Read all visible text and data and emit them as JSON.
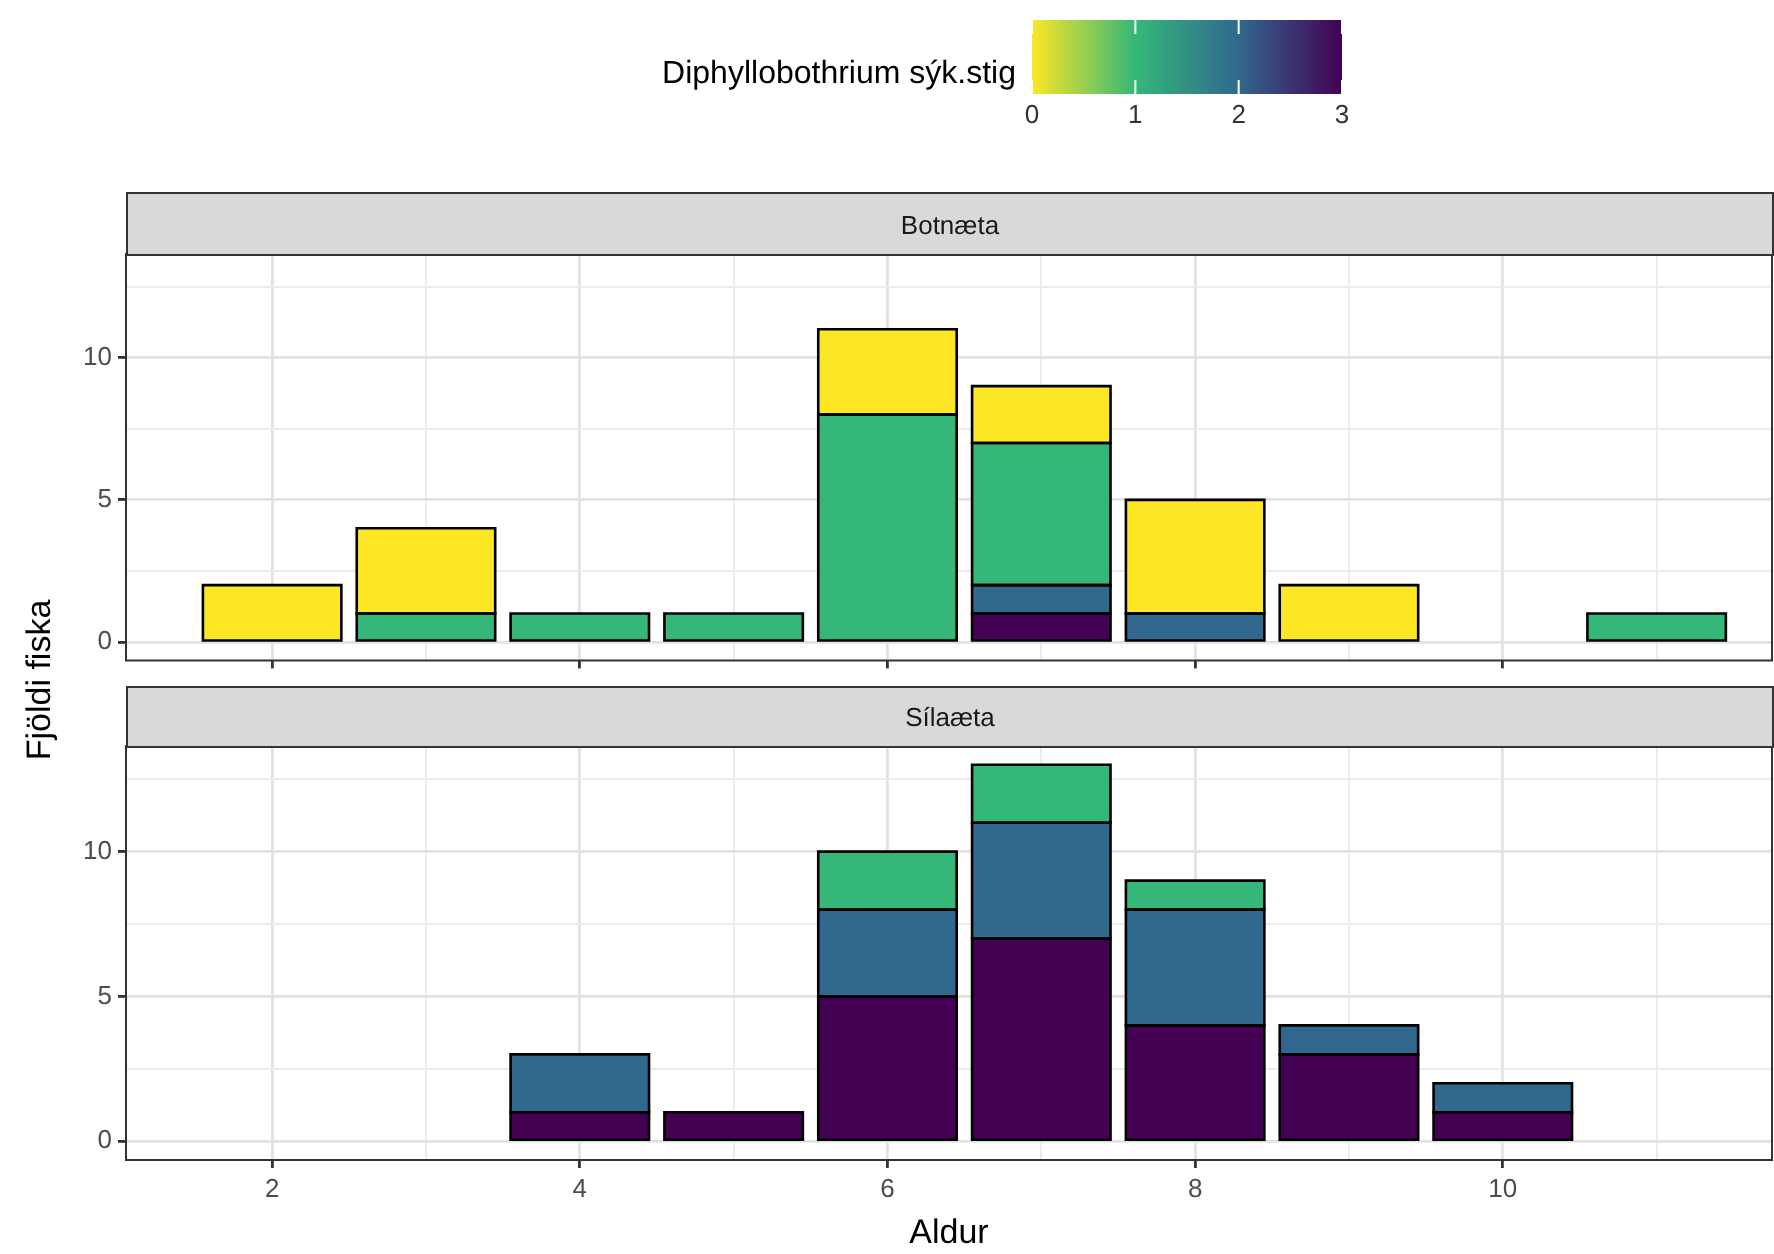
{
  "chart_data": [
    {
      "type": "bar",
      "title": "Botnæta",
      "ylabel": "Fjöldi fiska",
      "clabel": "Diphyllobothrium sýk.stig",
      "clim": [
        0,
        3
      ],
      "cticks": [
        0,
        1,
        2,
        3
      ],
      "stacked": true,
      "grid": true,
      "legend": false,
      "tick_labels": "y",
      "x": [
        2,
        3,
        4,
        5,
        6,
        7,
        8,
        9,
        10,
        11
      ],
      "series": [
        {
          "color": "#440154",
          "values": [
            null,
            null,
            null,
            null,
            null,
            1,
            null,
            null,
            null,
            null
          ]
        },
        {
          "color": "#31688e",
          "values": [
            null,
            null,
            null,
            null,
            null,
            1,
            1,
            null,
            null,
            null
          ]
        },
        {
          "color": "#35b779",
          "values": [
            null,
            1,
            1,
            1,
            8,
            5,
            null,
            null,
            null,
            1
          ]
        },
        {
          "color": "#fde725",
          "values": [
            2,
            3,
            null,
            null,
            3,
            2,
            4,
            2,
            null,
            null
          ]
        }
      ],
      "xlim": [
        1.05,
        11.75
      ],
      "xticks": [
        2,
        {
          "value": 3,
          "label": null
        },
        4,
        {
          "value": 5,
          "label": null
        },
        6,
        {
          "value": 7,
          "label": null
        },
        8,
        {
          "value": 9,
          "label": null
        },
        10,
        {
          "value": 11,
          "label": null
        }
      ],
      "ylim": [
        -0.65,
        13.65
      ],
      "yticks": [
        0,
        {
          "value": 2.5,
          "label": null
        },
        5,
        {
          "value": 7.5,
          "label": null
        },
        10,
        {
          "value": 12.5,
          "label": null
        }
      ]
    },
    {
      "type": "bar",
      "title": "Sílaæta",
      "xlabel": "Aldur",
      "stacked": true,
      "grid": true,
      "legend": false,
      "x": [
        4,
        5,
        6,
        7,
        8,
        9,
        10
      ],
      "series": [
        {
          "color": "#440154",
          "values": [
            1,
            1,
            5,
            7,
            4,
            3,
            1
          ]
        },
        {
          "color": "#31688e",
          "values": [
            2,
            null,
            3,
            4,
            4,
            1,
            1
          ]
        },
        {
          "color": "#35b779",
          "values": [
            null,
            null,
            2,
            2,
            1,
            null,
            null
          ]
        }
      ],
      "xlim": [
        1.05,
        11.75
      ],
      "xticks": [
        2,
        {
          "value": 3,
          "label": null
        },
        4,
        {
          "value": 5,
          "label": null
        },
        6,
        {
          "value": 7,
          "label": null
        },
        8,
        {
          "value": 9,
          "label": null
        },
        10,
        {
          "value": 11,
          "label": null
        }
      ],
      "ylim": [
        -0.65,
        13.65
      ],
      "yticks": [
        0,
        {
          "value": 2.5,
          "label": null
        },
        5,
        {
          "value": 7.5,
          "label": null
        },
        10,
        {
          "value": 12.5,
          "label": null
        }
      ]
    }
  ]
}
